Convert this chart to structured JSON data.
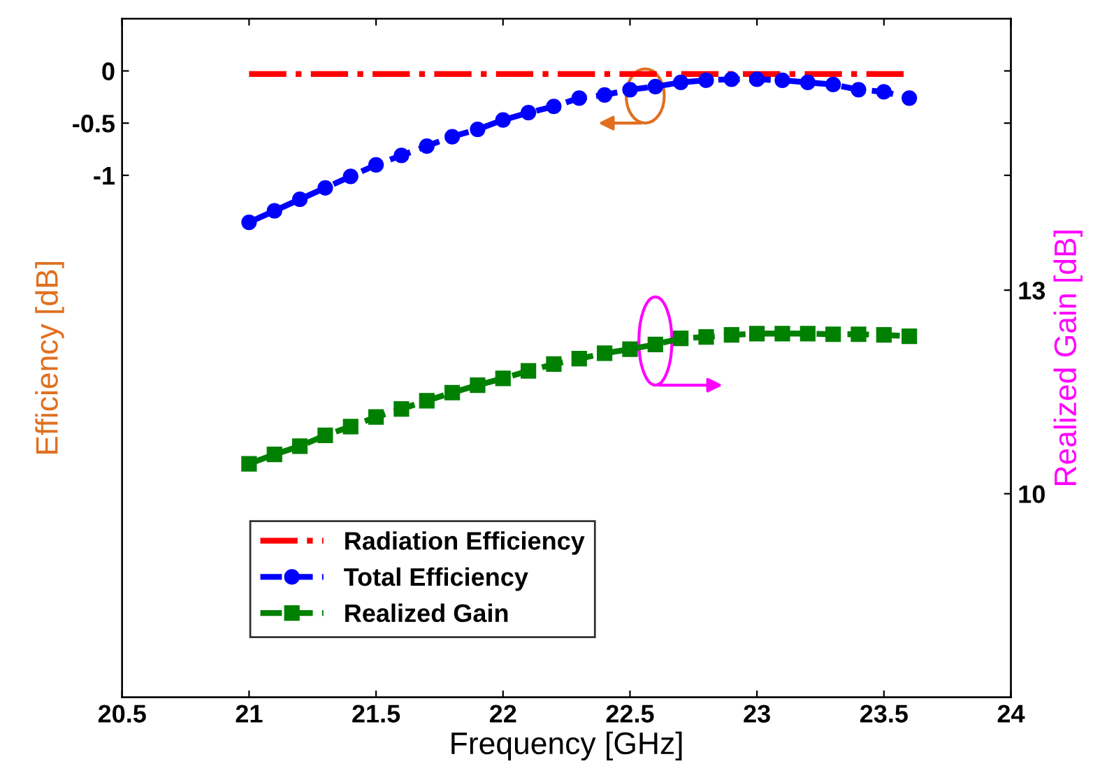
{
  "chart_data": {
    "type": "line",
    "xlabel": "Frequency [GHz]",
    "ylabel": "Efficiency [dB]",
    "y2label": "Realized Gain [dB]",
    "x": [
      21.0,
      21.1,
      21.2,
      21.3,
      21.4,
      21.5,
      21.6,
      21.7,
      21.8,
      21.9,
      22.0,
      22.1,
      22.2,
      22.3,
      22.4,
      22.5,
      22.6,
      22.7,
      22.8,
      22.9,
      23.0,
      23.1,
      23.2,
      23.3,
      23.4,
      23.5,
      23.6
    ],
    "series": [
      {
        "name": "Radiation Efficiency",
        "color": "#ff0000",
        "line_style": "dashdot",
        "marker": "none",
        "values": [
          -0.03,
          -0.03,
          -0.03,
          -0.03,
          -0.03,
          -0.03,
          -0.03,
          -0.03,
          -0.03,
          -0.03,
          -0.03,
          -0.03,
          -0.03,
          -0.03,
          -0.03,
          -0.03,
          -0.03,
          -0.03,
          -0.03,
          -0.03,
          -0.03,
          -0.03,
          -0.03,
          -0.03,
          -0.03,
          -0.03,
          -0.03
        ]
      },
      {
        "name": "Total Efficiency",
        "color": "#0000ff",
        "line_style": "dashed",
        "marker": "circle",
        "values": [
          -1.45,
          -1.34,
          -1.23,
          -1.12,
          -1.01,
          -0.9,
          -0.81,
          -0.72,
          -0.63,
          -0.56,
          -0.47,
          -0.4,
          -0.34,
          -0.26,
          -0.23,
          -0.18,
          -0.15,
          -0.11,
          -0.09,
          -0.08,
          -0.08,
          -0.09,
          -0.11,
          -0.13,
          -0.18,
          -0.2,
          -0.26
        ]
      },
      {
        "name": "Realized Gain",
        "color": "#008000",
        "line_style": "dashed",
        "marker": "square",
        "axis": "y2",
        "values": [
          10.44,
          10.58,
          10.7,
          10.86,
          10.99,
          11.13,
          11.25,
          11.37,
          11.49,
          11.6,
          11.7,
          11.81,
          11.91,
          11.99,
          12.07,
          12.13,
          12.2,
          12.29,
          12.31,
          12.34,
          12.36,
          12.36,
          12.36,
          12.35,
          12.35,
          12.34,
          12.32
        ]
      }
    ],
    "xlim": [
      20.5,
      24
    ],
    "xticks": [
      20.5,
      21,
      21.5,
      22,
      22.5,
      23,
      23.5,
      24
    ],
    "ylim": [
      -6,
      0.5
    ],
    "yticks": [
      0,
      -0.5,
      -1
    ],
    "y2lim": [
      7,
      17
    ],
    "y2ticks": [
      10,
      13
    ],
    "grid": false,
    "legend": "bottom left"
  }
}
